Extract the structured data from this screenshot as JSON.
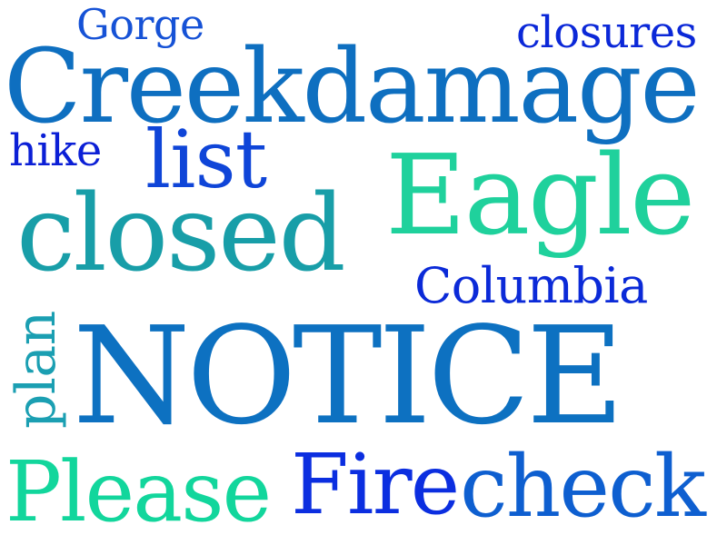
{
  "words": {
    "gorge": {
      "text": "Gorge",
      "color": "#1652d6"
    },
    "closures": {
      "text": "closures",
      "color": "#0b28d8"
    },
    "creek": {
      "text": "Creekdamage",
      "color": "#0e6fc0"
    },
    "hike": {
      "text": "hike",
      "color": "#0b1fd6"
    },
    "list": {
      "text": "list",
      "color": "#0f45d8"
    },
    "eagle": {
      "text": "Eagle",
      "color": "#1fd19c"
    },
    "closed": {
      "text": "closed",
      "color": "#189ea8"
    },
    "columbia": {
      "text": "Columbia",
      "color": "#0b2ad8"
    },
    "plan": {
      "text": "plan",
      "color": "#1b9fb2"
    },
    "notice": {
      "text": "NOTICE",
      "color": "#0d71c1"
    },
    "please": {
      "text": "Please",
      "color": "#12d69c"
    },
    "fire": {
      "text": "Fire",
      "color": "#0b2ee0"
    },
    "check": {
      "text": "check",
      "color": "#0e5fd0"
    }
  }
}
